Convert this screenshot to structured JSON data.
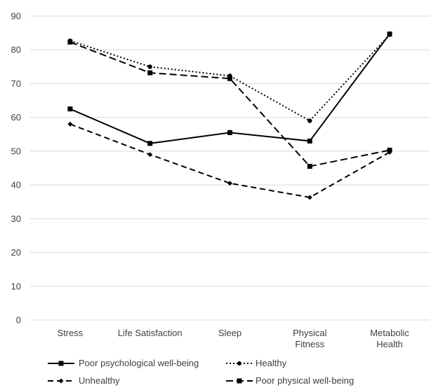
{
  "chart_data": {
    "type": "line",
    "title": "",
    "xlabel": "",
    "ylabel": "",
    "ylim": [
      0,
      90
    ],
    "yticks": [
      0,
      10,
      20,
      30,
      40,
      50,
      60,
      70,
      80,
      90
    ],
    "grid": true,
    "legend_position": "bottom",
    "categories": [
      [
        "Stress"
      ],
      [
        "Life Satisfaction"
      ],
      [
        "Sleep"
      ],
      [
        "Physical",
        "Fitness"
      ],
      [
        "Metabolic",
        "Health"
      ]
    ],
    "series": [
      {
        "name": "Poor psychological well-being",
        "values": [
          62.5,
          52.3,
          55.5,
          53.0,
          84.7
        ],
        "dash": "solid",
        "marker": "square",
        "color": "#000000"
      },
      {
        "name": "Healthy",
        "values": [
          82.7,
          75.0,
          72.3,
          59.0,
          84.5
        ],
        "dash": "dot",
        "marker": "circle",
        "color": "#000000"
      },
      {
        "name": "Unhealthy",
        "values": [
          58.0,
          49.0,
          40.5,
          36.3,
          49.7
        ],
        "dash": "dash",
        "marker": "diamond",
        "color": "#000000"
      },
      {
        "name": "Poor physical well-being",
        "values": [
          82.3,
          73.2,
          71.5,
          45.5,
          50.3
        ],
        "dash": "longdash",
        "marker": "square",
        "color": "#000000"
      }
    ]
  }
}
